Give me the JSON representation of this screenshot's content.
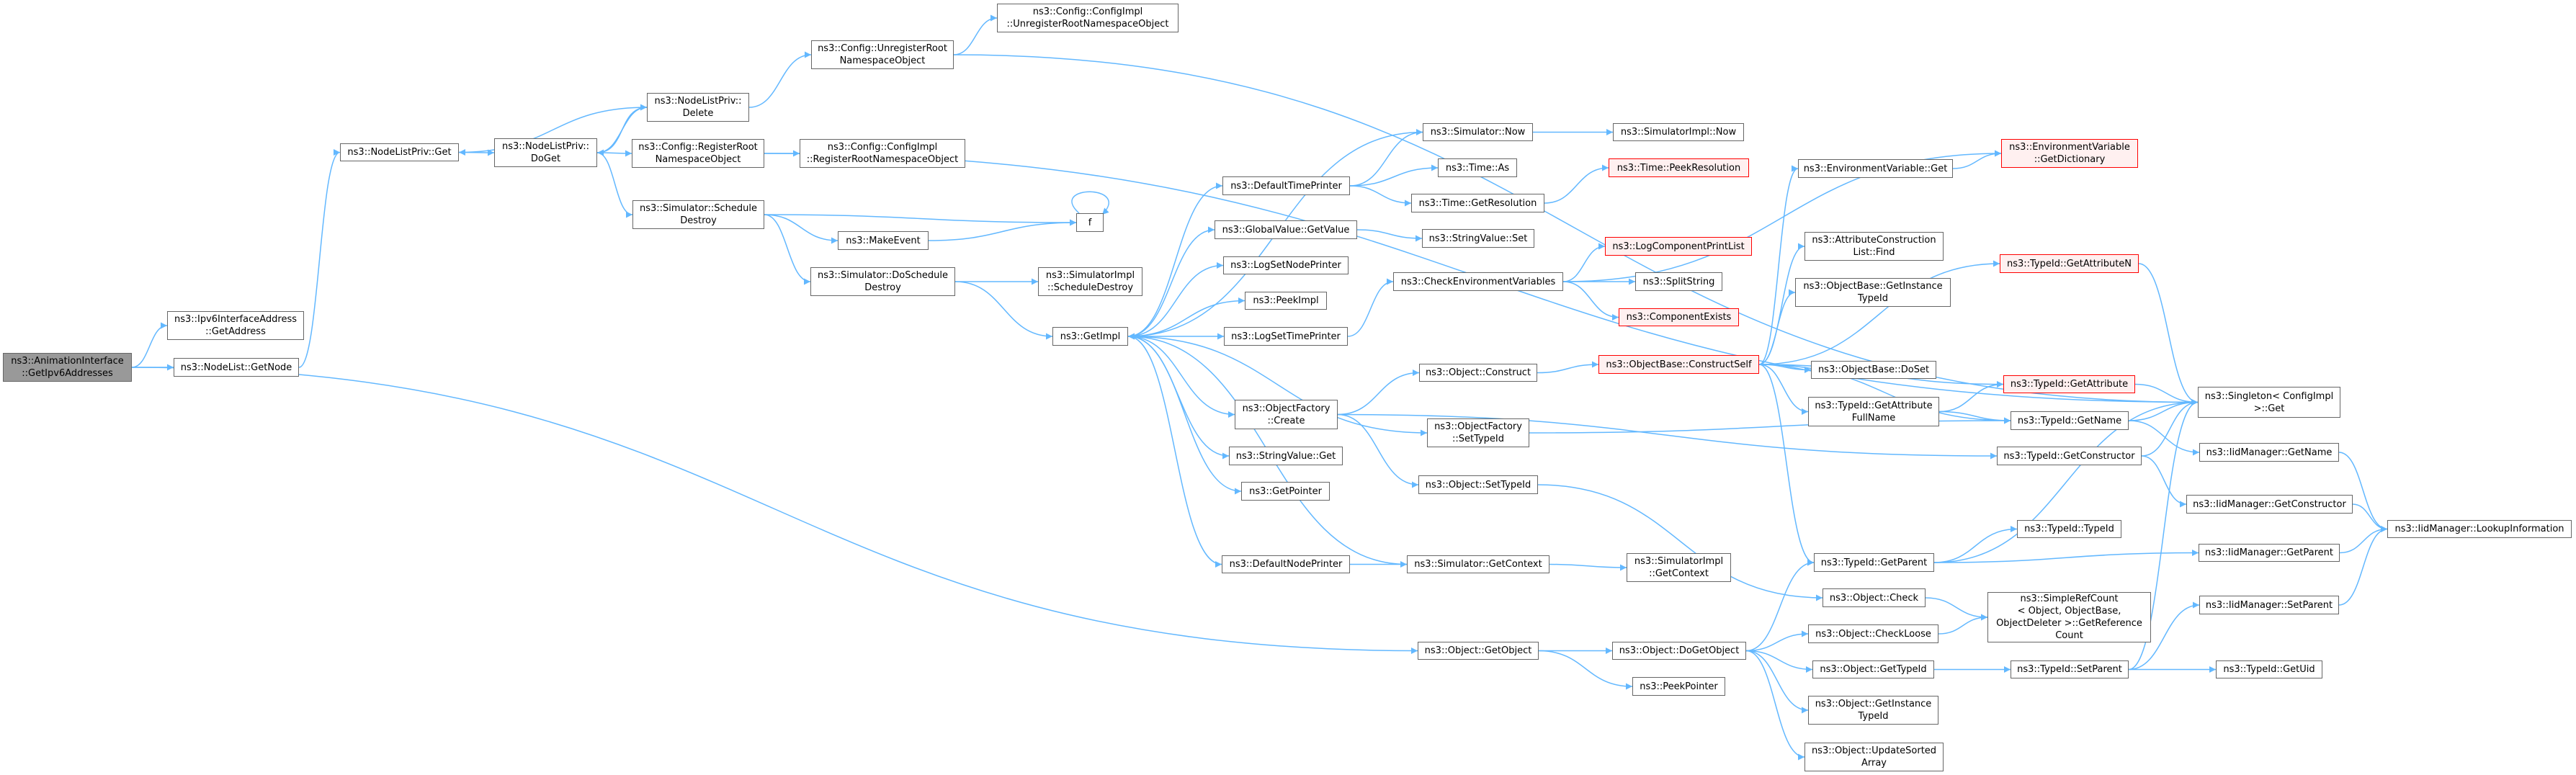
{
  "colors": {
    "edge": "#63b8ff",
    "node_border": "#666666",
    "root_fill": "#999999",
    "red_border": "#ff0000",
    "red_fill": "#fff0f0"
  },
  "nodes": {
    "root": {
      "lines": [
        "ns3::AnimationInterface",
        "::GetIpv6Addresses"
      ],
      "style": "root"
    },
    "ipv6addr": {
      "lines": [
        "ns3::Ipv6InterfaceAddress",
        "::GetAddress"
      ]
    },
    "getnode": {
      "lines": [
        "ns3::NodeList::GetNode"
      ]
    },
    "nlpget": {
      "lines": [
        "ns3::NodeListPriv::Get"
      ]
    },
    "nlpdoget": {
      "lines": [
        "ns3::NodeListPriv::",
        "DoGet"
      ]
    },
    "nlpdelete": {
      "lines": [
        "ns3::NodeListPriv::",
        "Delete"
      ]
    },
    "unreg": {
      "lines": [
        "ns3::Config::UnregisterRoot",
        "NamespaceObject"
      ]
    },
    "implunreg": {
      "lines": [
        "ns3::Config::ConfigImpl",
        "::UnregisterRootNamespaceObject"
      ]
    },
    "reg": {
      "lines": [
        "ns3::Config::RegisterRoot",
        "NamespaceObject"
      ]
    },
    "implreg": {
      "lines": [
        "ns3::Config::ConfigImpl",
        "::RegisterRootNamespaceObject"
      ]
    },
    "schedDestroy": {
      "lines": [
        "ns3::Simulator::Schedule",
        "Destroy"
      ]
    },
    "makeEvent": {
      "lines": [
        "ns3::MakeEvent"
      ]
    },
    "doSchedDestroy": {
      "lines": [
        "ns3::Simulator::DoSchedule",
        "Destroy"
      ]
    },
    "f": {
      "lines": [
        "f"
      ]
    },
    "implSchedDestroy": {
      "lines": [
        "ns3::SimulatorImpl",
        "::ScheduleDestroy"
      ]
    },
    "getImpl": {
      "lines": [
        "ns3::GetImpl"
      ]
    },
    "simNow": {
      "lines": [
        "ns3::Simulator::Now"
      ]
    },
    "implNow": {
      "lines": [
        "ns3::SimulatorImpl::Now"
      ]
    },
    "timeAs": {
      "lines": [
        "ns3::Time::As"
      ]
    },
    "peekRes": {
      "lines": [
        "ns3::Time::PeekResolution"
      ],
      "style": "red"
    },
    "defTimePrinter": {
      "lines": [
        "ns3::DefaultTimePrinter"
      ]
    },
    "getRes": {
      "lines": [
        "ns3::Time::GetResolution"
      ]
    },
    "gvGetValue": {
      "lines": [
        "ns3::GlobalValue::GetValue"
      ]
    },
    "svSet": {
      "lines": [
        "ns3::StringValue::Set"
      ]
    },
    "logCompPrint": {
      "lines": [
        "ns3::LogComponentPrintList"
      ],
      "style": "red"
    },
    "logSetNode": {
      "lines": [
        "ns3::LogSetNodePrinter"
      ]
    },
    "checkEnv": {
      "lines": [
        "ns3::CheckEnvironmentVariables"
      ]
    },
    "splitString": {
      "lines": [
        "ns3::SplitString"
      ]
    },
    "peekImpl": {
      "lines": [
        "ns3::PeekImpl"
      ]
    },
    "compExists": {
      "lines": [
        "ns3::ComponentExists"
      ],
      "style": "red"
    },
    "logSetTime": {
      "lines": [
        "ns3::LogSetTimePrinter"
      ]
    },
    "objConstruct": {
      "lines": [
        "ns3::Object::Construct"
      ]
    },
    "constructSelf": {
      "lines": [
        "ns3::ObjectBase::ConstructSelf"
      ],
      "style": "red"
    },
    "ofCreate": {
      "lines": [
        "ns3::ObjectFactory",
        "::Create"
      ]
    },
    "ofSetTypeId": {
      "lines": [
        "ns3::ObjectFactory",
        "::SetTypeId"
      ]
    },
    "svGet": {
      "lines": [
        "ns3::StringValue::Get"
      ]
    },
    "objSetTypeId": {
      "lines": [
        "ns3::Object::SetTypeId"
      ]
    },
    "getPointer": {
      "lines": [
        "ns3::GetPointer"
      ]
    },
    "defNodePrinter": {
      "lines": [
        "ns3::DefaultNodePrinter"
      ]
    },
    "simGetContext": {
      "lines": [
        "ns3::Simulator::GetContext"
      ]
    },
    "implGetContext": {
      "lines": [
        "ns3::SimulatorImpl",
        "::GetContext"
      ]
    },
    "getObject": {
      "lines": [
        "ns3::Object::GetObject"
      ]
    },
    "doGetObject": {
      "lines": [
        "ns3::Object::DoGetObject"
      ]
    },
    "peekPointer": {
      "lines": [
        "ns3::PeekPointer"
      ]
    },
    "envGet": {
      "lines": [
        "ns3::EnvironmentVariable::Get"
      ]
    },
    "envDict": {
      "lines": [
        "ns3::EnvironmentVariable",
        "::GetDictionary"
      ],
      "style": "red"
    },
    "attrFind": {
      "lines": [
        "ns3::AttributeConstruction",
        "List::Find"
      ]
    },
    "getAttrN": {
      "lines": [
        "ns3::TypeId::GetAttributeN"
      ],
      "style": "red"
    },
    "obGetInstTid": {
      "lines": [
        "ns3::ObjectBase::GetInstance",
        "TypeId"
      ]
    },
    "doSet": {
      "lines": [
        "ns3::ObjectBase::DoSet"
      ]
    },
    "getAttr": {
      "lines": [
        "ns3::TypeId::GetAttribute"
      ],
      "style": "red"
    },
    "singleton": {
      "lines": [
        "ns3::Singleton< ConfigImpl",
        " >::Get"
      ]
    },
    "getAttrFull": {
      "lines": [
        "ns3::TypeId::GetAttribute",
        "FullName"
      ]
    },
    "tidGetName": {
      "lines": [
        "ns3::TypeId::GetName"
      ]
    },
    "iidGetName": {
      "lines": [
        "ns3::IidManager::GetName"
      ]
    },
    "tidGetCtor": {
      "lines": [
        "ns3::TypeId::GetConstructor"
      ]
    },
    "iidGetCtor": {
      "lines": [
        "ns3::IidManager::GetConstructor"
      ]
    },
    "lookup": {
      "lines": [
        "ns3::IidManager::LookupInformation"
      ]
    },
    "tidTid": {
      "lines": [
        "ns3::TypeId::TypeId"
      ]
    },
    "iidGetParent": {
      "lines": [
        "ns3::IidManager::GetParent"
      ]
    },
    "tidGetParent": {
      "lines": [
        "ns3::TypeId::GetParent"
      ]
    },
    "objCheck": {
      "lines": [
        "ns3::Object::Check"
      ]
    },
    "simpleRef": {
      "lines": [
        "ns3::SimpleRefCount",
        "< Object, ObjectBase,",
        " ObjectDeleter >::GetReference",
        "Count"
      ]
    },
    "iidSetParent": {
      "lines": [
        "ns3::IidManager::SetParent"
      ]
    },
    "checkLoose": {
      "lines": [
        "ns3::Object::CheckLoose"
      ]
    },
    "objGetTid": {
      "lines": [
        "ns3::Object::GetTypeId"
      ]
    },
    "tidSetParent": {
      "lines": [
        "ns3::TypeId::SetParent"
      ]
    },
    "tidGetUid": {
      "lines": [
        "ns3::TypeId::GetUid"
      ]
    },
    "objGetInstTid": {
      "lines": [
        "ns3::Object::GetInstance",
        "TypeId"
      ]
    },
    "updSorted": {
      "lines": [
        "ns3::Object::UpdateSorted",
        "Array"
      ]
    }
  },
  "edges": [
    [
      "root",
      "ipv6addr"
    ],
    [
      "root",
      "getnode"
    ],
    [
      "root",
      "getObject"
    ],
    [
      "getnode",
      "nlpget"
    ],
    [
      "nlpget",
      "nlpdoget"
    ],
    [
      "nlpdoget",
      "nlpdelete"
    ],
    [
      "nlpdoget",
      "reg"
    ],
    [
      "nlpdoget",
      "schedDestroy"
    ],
    [
      "nlpdelete",
      "nlpget"
    ],
    [
      "nlpdelete",
      "nlpdoget"
    ],
    [
      "nlpdelete",
      "unreg"
    ],
    [
      "unreg",
      "implunreg"
    ],
    [
      "unreg",
      "singleton"
    ],
    [
      "reg",
      "implreg"
    ],
    [
      "reg",
      "singleton"
    ],
    [
      "schedDestroy",
      "f"
    ],
    [
      "schedDestroy",
      "makeEvent"
    ],
    [
      "schedDestroy",
      "doSchedDestroy"
    ],
    [
      "makeEvent",
      "f"
    ],
    [
      "f",
      "f"
    ],
    [
      "doSchedDestroy",
      "implSchedDestroy"
    ],
    [
      "doSchedDestroy",
      "getImpl"
    ],
    [
      "getImpl",
      "defTimePrinter"
    ],
    [
      "getImpl",
      "gvGetValue"
    ],
    [
      "getImpl",
      "logSetNode"
    ],
    [
      "getImpl",
      "peekImpl"
    ],
    [
      "getImpl",
      "logSetTime"
    ],
    [
      "getImpl",
      "ofCreate"
    ],
    [
      "getImpl",
      "svGet"
    ],
    [
      "getImpl",
      "getPointer"
    ],
    [
      "getImpl",
      "defNodePrinter"
    ],
    [
      "getImpl",
      "ofSetTypeId"
    ],
    [
      "simNow",
      "getImpl"
    ],
    [
      "simGetContext",
      "getImpl"
    ],
    [
      "defTimePrinter",
      "simNow"
    ],
    [
      "defTimePrinter",
      "timeAs"
    ],
    [
      "defTimePrinter",
      "getRes"
    ],
    [
      "simNow",
      "implNow"
    ],
    [
      "getRes",
      "peekRes"
    ],
    [
      "gvGetValue",
      "svSet"
    ],
    [
      "logSetTime",
      "checkEnv"
    ],
    [
      "checkEnv",
      "envDict"
    ],
    [
      "checkEnv",
      "logCompPrint"
    ],
    [
      "checkEnv",
      "splitString"
    ],
    [
      "checkEnv",
      "compExists"
    ],
    [
      "envGet",
      "envDict"
    ],
    [
      "ofCreate",
      "objConstruct"
    ],
    [
      "ofCreate",
      "objSetTypeId"
    ],
    [
      "ofCreate",
      "tidGetCtor"
    ],
    [
      "objConstruct",
      "constructSelf"
    ],
    [
      "constructSelf",
      "envGet"
    ],
    [
      "constructSelf",
      "attrFind"
    ],
    [
      "constructSelf",
      "obGetInstTid"
    ],
    [
      "constructSelf",
      "doSet"
    ],
    [
      "constructSelf",
      "getAttrN"
    ],
    [
      "constructSelf",
      "getAttr"
    ],
    [
      "constructSelf",
      "getAttrFull"
    ],
    [
      "constructSelf",
      "tidGetName"
    ],
    [
      "constructSelf",
      "tidGetParent"
    ],
    [
      "ofSetTypeId",
      "tidGetName"
    ],
    [
      "objSetTypeId",
      "objCheck"
    ],
    [
      "getAttrN",
      "singleton"
    ],
    [
      "getAttr",
      "singleton"
    ],
    [
      "getAttrFull",
      "getAttr"
    ],
    [
      "getAttrFull",
      "tidGetName"
    ],
    [
      "tidGetName",
      "singleton"
    ],
    [
      "tidGetName",
      "iidGetName"
    ],
    [
      "tidGetCtor",
      "singleton"
    ],
    [
      "tidGetCtor",
      "iidGetCtor"
    ],
    [
      "tidGetParent",
      "singleton"
    ],
    [
      "tidGetParent",
      "tidTid"
    ],
    [
      "tidGetParent",
      "iidGetParent"
    ],
    [
      "iidGetName",
      "lookup"
    ],
    [
      "iidGetCtor",
      "lookup"
    ],
    [
      "iidGetParent",
      "lookup"
    ],
    [
      "iidSetParent",
      "lookup"
    ],
    [
      "defNodePrinter",
      "simGetContext"
    ],
    [
      "simGetContext",
      "implGetContext"
    ],
    [
      "getObject",
      "doGetObject"
    ],
    [
      "getObject",
      "peekPointer"
    ],
    [
      "doGetObject",
      "tidGetParent"
    ],
    [
      "doGetObject",
      "checkLoose"
    ],
    [
      "doGetObject",
      "objGetTid"
    ],
    [
      "doGetObject",
      "objGetInstTid"
    ],
    [
      "doGetObject",
      "updSorted"
    ],
    [
      "objCheck",
      "simpleRef"
    ],
    [
      "checkLoose",
      "simpleRef"
    ],
    [
      "objGetTid",
      "tidSetParent"
    ],
    [
      "tidSetParent",
      "iidSetParent"
    ],
    [
      "tidSetParent",
      "tidGetUid"
    ],
    [
      "tidSetParent",
      "singleton"
    ]
  ]
}
